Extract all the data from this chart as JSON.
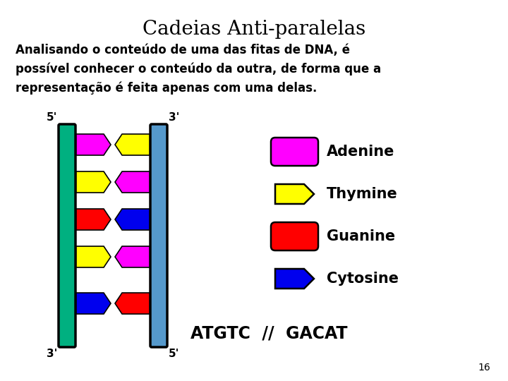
{
  "title": "Cadeias Anti-paralelas",
  "title_fontsize": 20,
  "body_text": "Analisando o conteúdo de uma das fitas de DNA, é\npossível conhecer o conteúdo da outra, de forma que a\nrepresentação é feita apenas com uma delas.",
  "body_fontsize": 12,
  "atgtc_text": "ATGTC  //  GACAT",
  "atgtc_fontsize": 17,
  "page_number": "16",
  "left_strand_color": "#00b080",
  "right_strand_color": "#5599cc",
  "colors": {
    "adenine": "#ff00ff",
    "thymine": "#ffff00",
    "guanine": "#ff0000",
    "cytosine": "#0000ee"
  },
  "rungs": [
    {
      "left": "adenine",
      "right": "thymine"
    },
    {
      "left": "thymine",
      "right": "adenine"
    },
    {
      "left": "guanine",
      "right": "cytosine"
    },
    {
      "left": "thymine",
      "right": "adenine"
    },
    {
      "left": "cytosine",
      "right": "guanine"
    }
  ],
  "legend_items": [
    {
      "label": "Adenine",
      "color": "#ff00ff",
      "shape": "oval"
    },
    {
      "label": "Thymine",
      "color": "#ffff00",
      "shape": "arrow"
    },
    {
      "label": "Guanine",
      "color": "#ff0000",
      "shape": "oval"
    },
    {
      "label": "Cytosine",
      "color": "#0000ee",
      "shape": "arrow"
    }
  ],
  "background_color": "#ffffff"
}
